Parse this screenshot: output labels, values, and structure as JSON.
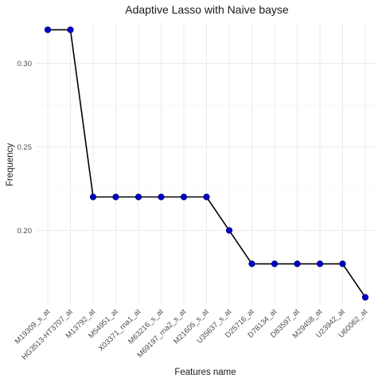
{
  "chart_data": {
    "type": "line",
    "title": "Adaptive Lasso with Naive bayse",
    "xlabel": "Features name",
    "ylabel": "Frequency",
    "categories": [
      "M19309_s_at",
      "HG3513-HT3707_at",
      "M13792_at",
      "M54951_at",
      "X03371_rna1_at",
      "M63216_s_at",
      "M69197_rna2_s_at",
      "M21605_s_at",
      "U35637_s_at",
      "D25716_at",
      "D78134_at",
      "D83597_at",
      "M29458_at",
      "U23942_at",
      "U60062_at"
    ],
    "values": [
      0.32,
      0.32,
      0.22,
      0.22,
      0.22,
      0.22,
      0.22,
      0.22,
      0.2,
      0.18,
      0.18,
      0.18,
      0.18,
      0.18,
      0.16
    ],
    "yticks": [
      0.2,
      0.25,
      0.3
    ],
    "ytick_labels": [
      "0.20",
      "0.25",
      "0.30"
    ],
    "ylim": [
      0.1555,
      0.3245
    ],
    "grid": true,
    "legend": "none",
    "colors": {
      "point": "#0000cd",
      "line": "#000000"
    }
  }
}
